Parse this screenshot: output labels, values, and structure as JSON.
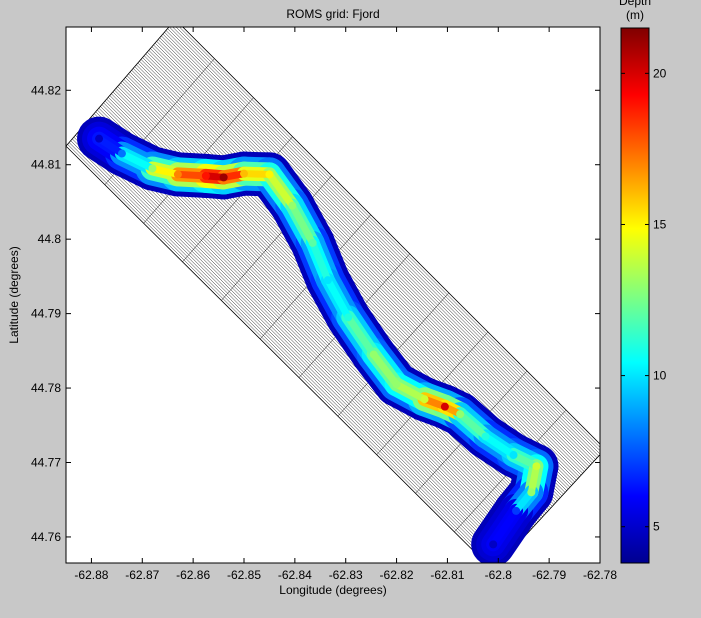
{
  "chart_data": {
    "type": "heatmap",
    "title": "ROMS grid: Fjord",
    "xlabel": "Longitude (degrees)",
    "ylabel": "Latitude (degrees)",
    "xlim": [
      -62.885,
      -62.78
    ],
    "ylim": [
      44.7565,
      44.8285
    ],
    "x_ticks": [
      -62.88,
      -62.87,
      -62.86,
      -62.85,
      -62.84,
      -62.83,
      -62.82,
      -62.81,
      -62.8,
      -62.79,
      -62.78
    ],
    "x_tick_labels": [
      "-62.88",
      "-62.87",
      "-62.86",
      "-62.85",
      "-62.84",
      "-62.83",
      "-62.82",
      "-62.81",
      "-62.8",
      "-62.79",
      "-62.78"
    ],
    "y_ticks": [
      44.76,
      44.77,
      44.78,
      44.79,
      44.8,
      44.81,
      44.82
    ],
    "y_tick_labels": [
      "44.76",
      "44.77",
      "44.78",
      "44.79",
      "44.8",
      "44.81",
      "44.82"
    ],
    "colorbar": {
      "label": "Depth\n(m)",
      "range": [
        3.8,
        21.5
      ],
      "ticks": [
        5,
        10,
        15,
        20
      ],
      "tick_labels": [
        "5",
        "10",
        "15",
        "20"
      ],
      "colormap": "jet"
    },
    "grid_domain_corners": [
      [
        -62.885,
        44.8125
      ],
      [
        -62.8635,
        44.8295
      ],
      [
        -62.779,
        44.7718
      ],
      [
        -62.801,
        44.7555
      ]
    ],
    "fjord_channel": [
      {
        "lon": -62.8785,
        "lat": 44.8135,
        "depth": 5
      },
      {
        "lon": -62.874,
        "lat": 44.8115,
        "depth": 8
      },
      {
        "lon": -62.868,
        "lat": 44.8095,
        "depth": 13
      },
      {
        "lon": -62.863,
        "lat": 44.8087,
        "depth": 17
      },
      {
        "lon": -62.8575,
        "lat": 44.8085,
        "depth": 19
      },
      {
        "lon": -62.854,
        "lat": 44.8083,
        "depth": 21
      },
      {
        "lon": -62.85,
        "lat": 44.8088,
        "depth": 16
      },
      {
        "lon": -62.845,
        "lat": 44.8087,
        "depth": 15
      },
      {
        "lon": -62.8405,
        "lat": 44.8045,
        "depth": 13
      },
      {
        "lon": -62.8365,
        "lat": 44.7995,
        "depth": 12
      },
      {
        "lon": -62.8335,
        "lat": 44.7945,
        "depth": 10
      },
      {
        "lon": -62.8295,
        "lat": 44.7895,
        "depth": 11
      },
      {
        "lon": -62.8245,
        "lat": 44.7845,
        "depth": 13
      },
      {
        "lon": -62.82,
        "lat": 44.7805,
        "depth": 13
      },
      {
        "lon": -62.8145,
        "lat": 44.7785,
        "depth": 14
      },
      {
        "lon": -62.8105,
        "lat": 44.7775,
        "depth": 20
      },
      {
        "lon": -62.8075,
        "lat": 44.7765,
        "depth": 13
      },
      {
        "lon": -62.8025,
        "lat": 44.7735,
        "depth": 11
      },
      {
        "lon": -62.797,
        "lat": 44.771,
        "depth": 10
      },
      {
        "lon": -62.7925,
        "lat": 44.7695,
        "depth": 14
      },
      {
        "lon": -62.7935,
        "lat": 44.766,
        "depth": 13
      },
      {
        "lon": -62.7965,
        "lat": 44.7635,
        "depth": 7
      },
      {
        "lon": -62.801,
        "lat": 44.759,
        "depth": 5
      }
    ]
  }
}
